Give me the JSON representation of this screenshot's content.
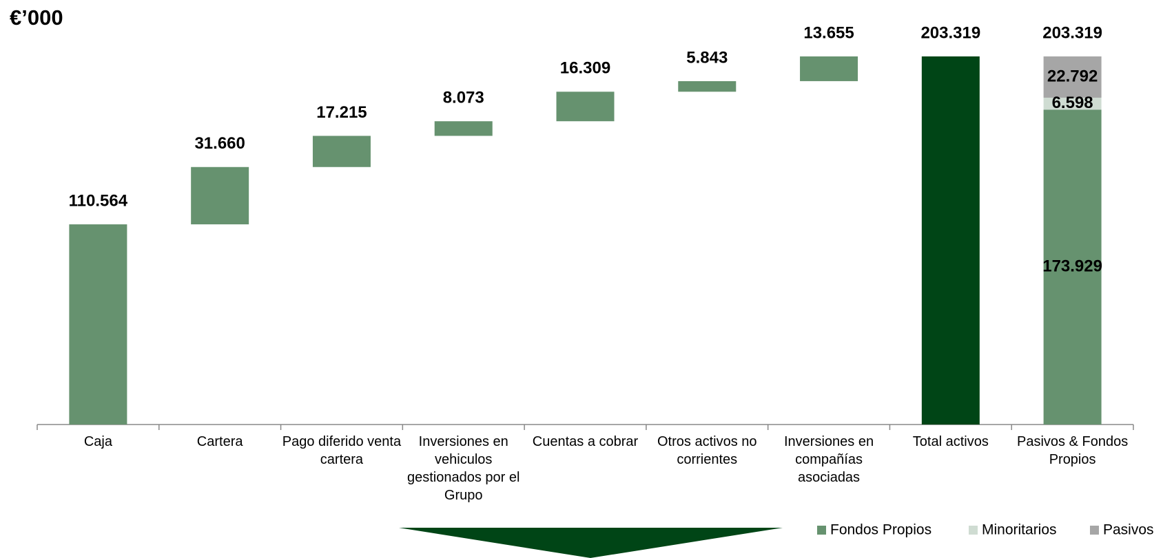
{
  "chart_data": {
    "type": "waterfall",
    "title": "€’000",
    "categories": [
      "Caja",
      "Cartera",
      "Pago diferido venta cartera",
      "Inversiones en vehiculos gestionados por el Grupo",
      "Cuentas a cobrar",
      "Otros activos no corrientes",
      "Inversiones en compañías asociadas",
      "Total activos",
      "Pasivos & Fondos Propios"
    ],
    "measures": [
      "relative",
      "relative",
      "relative",
      "relative",
      "relative",
      "relative",
      "relative",
      "total",
      "total"
    ],
    "values": [
      110564,
      31660,
      17215,
      8073,
      16309,
      5843,
      13655,
      203319,
      203319
    ],
    "value_labels": [
      "110.564",
      "31.660",
      "17.215",
      "8.073",
      "16.309",
      "5.843",
      "13.655",
      "203.319",
      "203.319"
    ],
    "color": "#66926f",
    "total_color": "#004516",
    "series": [
      {
        "name": "Fondos Propios",
        "color": "#66926f",
        "values": [
          null,
          null,
          null,
          null,
          null,
          null,
          null,
          null,
          173929
        ],
        "value_labels": [
          null,
          null,
          null,
          null,
          null,
          null,
          null,
          null,
          "173.929"
        ]
      },
      {
        "name": "Minoritarios",
        "color": "#cfdcd2",
        "values": [
          null,
          null,
          null,
          null,
          null,
          null,
          null,
          null,
          6598
        ],
        "value_labels": [
          null,
          null,
          null,
          null,
          null,
          null,
          null,
          null,
          "6.598"
        ]
      },
      {
        "name": "Pasivos",
        "color": "#a6a6a6",
        "values": [
          null,
          null,
          null,
          null,
          null,
          null,
          null,
          null,
          22792
        ],
        "value_labels": [
          null,
          null,
          null,
          null,
          null,
          null,
          null,
          null,
          "22.792"
        ]
      }
    ],
    "legend": "bottom-right"
  }
}
